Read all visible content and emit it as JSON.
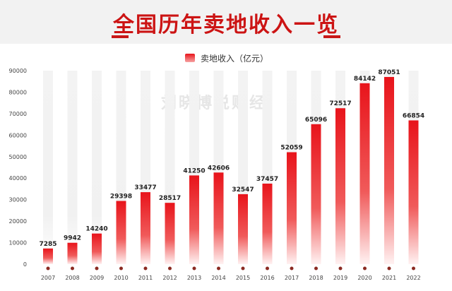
{
  "title": "全国历年卖地收入一览",
  "watermark": "刘晓博说财经",
  "colors": {
    "title": "#cc1414",
    "bar_top": "#e8141b",
    "bar_bottom": "#ffffff",
    "bg_bar": "#f1f1f1",
    "dot": "#8b2a22"
  },
  "chart_data": {
    "type": "bar",
    "categories": [
      "2007",
      "2008",
      "2009",
      "2010",
      "2011",
      "2012",
      "2013",
      "2014",
      "2015",
      "2016",
      "2017",
      "2018",
      "2019",
      "2020",
      "2021",
      "2022"
    ],
    "series": [
      {
        "name": "卖地收入（亿元）",
        "values": [
          7285,
          9942,
          14240,
          29398,
          33477,
          28517,
          41250,
          42606,
          32547,
          37457,
          52059,
          65096,
          72517,
          84142,
          87051,
          66854
        ]
      }
    ],
    "yticks": [
      0,
      10000,
      20000,
      30000,
      40000,
      50000,
      60000,
      70000,
      80000,
      90000
    ],
    "ylim": [
      0,
      90000
    ],
    "legend": "top-center",
    "grid": false,
    "data_labels": true
  }
}
